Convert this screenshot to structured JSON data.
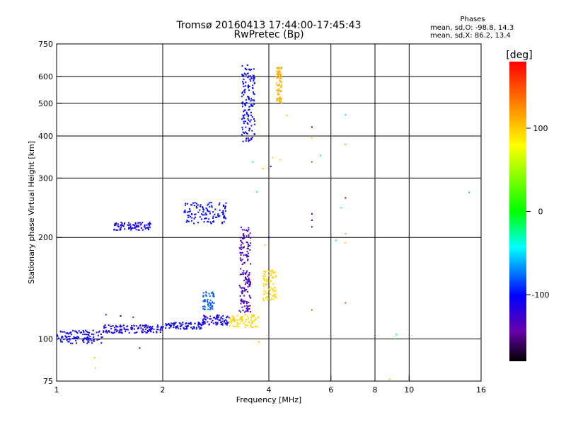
{
  "chart_data": {
    "type": "scatter",
    "title": "Tromsø 20160413 17:44:00-17:45:43",
    "subtitle": "RwPretec (Bp)",
    "xlabel": "Frequency [MHz]",
    "ylabel": "Stationary phase Virtual Height [km]",
    "x_scale": "log",
    "y_scale": "log",
    "xlim": [
      1,
      16
    ],
    "ylim": [
      75,
      750
    ],
    "x_ticks": [
      1,
      2,
      4,
      6,
      8,
      10,
      16
    ],
    "y_ticks": [
      75,
      100,
      200,
      300,
      400,
      500,
      600,
      750
    ],
    "x_gridlines": [
      2,
      4,
      6,
      8,
      10
    ],
    "y_gridlines": [
      100,
      200,
      300,
      400,
      500,
      600
    ],
    "grid": true,
    "phases_header": "Phases",
    "phases_o": "mean, sd,O: -98.8, 14.3",
    "phases_x": "mean, sd,X:  86.2, 13.4",
    "colorbar": {
      "label": "[deg]",
      "ticks": [
        100,
        0,
        -100
      ],
      "range": [
        -180,
        180
      ]
    },
    "point_groups": [
      {
        "x_range": [
          1.0,
          1.35
        ],
        "height_range": [
          97,
          106
        ],
        "phase": -105
      },
      {
        "x_range": [
          1.35,
          2.0
        ],
        "height_range": [
          104,
          110
        ],
        "phase": -110
      },
      {
        "x_range": [
          2.0,
          2.6
        ],
        "height_range": [
          107,
          112
        ],
        "phase": -105
      },
      {
        "x_range": [
          2.6,
          3.1
        ],
        "height_range": [
          110,
          118
        ],
        "phase": -110
      },
      {
        "x_range": [
          1.45,
          1.85
        ],
        "height_range": [
          210,
          222
        ],
        "phase": -110
      },
      {
        "x_range": [
          2.3,
          3.05
        ],
        "height_range": [
          220,
          255
        ],
        "phase": -100
      },
      {
        "x_range": [
          2.6,
          2.8
        ],
        "height_range": [
          122,
          138
        ],
        "phase": -80
      },
      {
        "x_range": [
          3.3,
          3.55
        ],
        "height_range": [
          120,
          215
        ],
        "phase": -130
      },
      {
        "x_range": [
          3.35,
          3.65
        ],
        "height_range": [
          385,
          650
        ],
        "phase": -100
      },
      {
        "x_range": [
          3.1,
          3.75
        ],
        "height_range": [
          108,
          118
        ],
        "phase": 95
      },
      {
        "x_range": [
          3.85,
          4.2
        ],
        "height_range": [
          130,
          160
        ],
        "phase": 95
      },
      {
        "x_range": [
          4.2,
          4.35
        ],
        "height_range": [
          500,
          640
        ],
        "phase": 110
      }
    ],
    "points": [
      {
        "x": 1.38,
        "y": 118,
        "phase": -90
      },
      {
        "x": 1.52,
        "y": 117,
        "phase": -100
      },
      {
        "x": 1.65,
        "y": 116,
        "phase": -90
      },
      {
        "x": 1.72,
        "y": 94,
        "phase": -110
      },
      {
        "x": 1.28,
        "y": 88,
        "phase": 100
      },
      {
        "x": 1.29,
        "y": 82,
        "phase": 100
      },
      {
        "x": 3.75,
        "y": 98,
        "phase": 100
      },
      {
        "x": 3.6,
        "y": 335,
        "phase": -40
      },
      {
        "x": 3.7,
        "y": 273,
        "phase": -30
      },
      {
        "x": 3.85,
        "y": 320,
        "phase": 110
      },
      {
        "x": 4.05,
        "y": 325,
        "phase": -110
      },
      {
        "x": 4.1,
        "y": 345,
        "phase": 100
      },
      {
        "x": 4.3,
        "y": 340,
        "phase": 100
      },
      {
        "x": 4.0,
        "y": 200,
        "phase": -110
      },
      {
        "x": 3.9,
        "y": 190,
        "phase": 100
      },
      {
        "x": 4.5,
        "y": 460,
        "phase": 110
      },
      {
        "x": 5.3,
        "y": 425,
        "phase": -110
      },
      {
        "x": 5.3,
        "y": 395,
        "phase": 100
      },
      {
        "x": 5.3,
        "y": 335,
        "phase": 160
      },
      {
        "x": 5.3,
        "y": 235,
        "phase": -100
      },
      {
        "x": 5.3,
        "y": 225,
        "phase": -110
      },
      {
        "x": 5.3,
        "y": 215,
        "phase": -110
      },
      {
        "x": 5.3,
        "y": 122,
        "phase": 150
      },
      {
        "x": 5.6,
        "y": 350,
        "phase": -20
      },
      {
        "x": 6.4,
        "y": 245,
        "phase": -40
      },
      {
        "x": 6.6,
        "y": 462,
        "phase": -50
      },
      {
        "x": 6.6,
        "y": 378,
        "phase": 20
      },
      {
        "x": 6.6,
        "y": 262,
        "phase": -110
      },
      {
        "x": 6.6,
        "y": 205,
        "phase": 110
      },
      {
        "x": 6.6,
        "y": 193,
        "phase": 100
      },
      {
        "x": 6.6,
        "y": 128,
        "phase": 150
      },
      {
        "x": 6.2,
        "y": 196,
        "phase": -20
      },
      {
        "x": 9.2,
        "y": 103,
        "phase": -20
      },
      {
        "x": 9.1,
        "y": 100,
        "phase": 10
      },
      {
        "x": 8.8,
        "y": 76,
        "phase": 100
      },
      {
        "x": 14.8,
        "y": 272,
        "phase": -60
      }
    ]
  }
}
